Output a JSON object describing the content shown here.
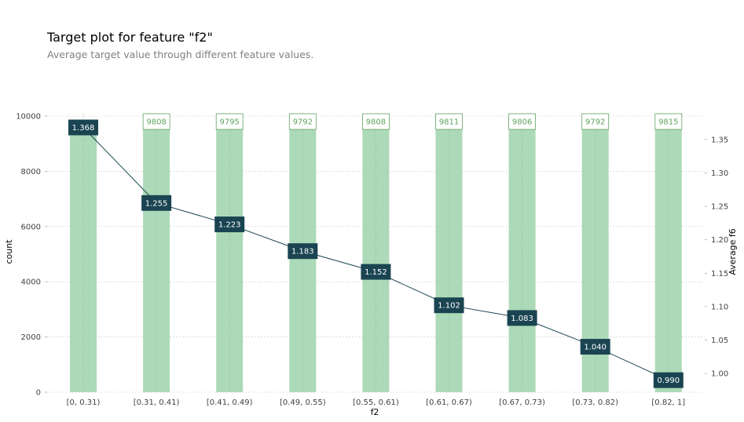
{
  "title": "Target plot for feature \"f2\"",
  "subtitle": "Average target value through different feature values.",
  "colors": {
    "bar": "#acd9b7",
    "count_label_border": "#5fa35f",
    "count_label_text": "#5fa35f",
    "line": "#1a4452",
    "avg_label_bg": "#1a4452",
    "grid": "#c8c8c8"
  },
  "chart_data": {
    "type": "bar",
    "title": "Target plot for feature \"f2\"",
    "subtitle": "Average target value through different feature values.",
    "xlabel": "f2",
    "ylabel": "count",
    "y2label": "Average f6",
    "categories": [
      "[0, 0.31)",
      "[0.31, 0.41)",
      "[0.41, 0.49)",
      "[0.49, 0.55)",
      "[0.55, 0.61)",
      "[0.61, 0.67)",
      "[0.67, 0.73)",
      "[0.73, 0.82)",
      "[0.82, 1]"
    ],
    "series": [
      {
        "name": "count",
        "type": "bar",
        "axis": "left",
        "values": [
          9792,
          9808,
          9795,
          9792,
          9808,
          9811,
          9806,
          9792,
          9815
        ],
        "labels": [
          "",
          "9808",
          "9795",
          "9792",
          "9808",
          "9811",
          "9806",
          "9792",
          "9815"
        ]
      },
      {
        "name": "Average f6",
        "type": "line",
        "axis": "right",
        "values": [
          1.368,
          1.255,
          1.223,
          1.183,
          1.152,
          1.102,
          1.083,
          1.04,
          0.99
        ],
        "labels": [
          "1.368",
          "1.255",
          "1.223",
          "1.183",
          "1.152",
          "1.102",
          "1.083",
          "1.040",
          "0.990"
        ]
      }
    ],
    "ylim": [
      0,
      10000
    ],
    "yticks": [
      "0",
      "2000",
      "4000",
      "6000",
      "8000",
      "10000"
    ],
    "y2lim": [
      0.972,
      1.385
    ],
    "y2ticks": [
      "1.00",
      "1.05",
      "1.10",
      "1.15",
      "1.20",
      "1.25",
      "1.30",
      "1.35"
    ],
    "grid": true
  }
}
